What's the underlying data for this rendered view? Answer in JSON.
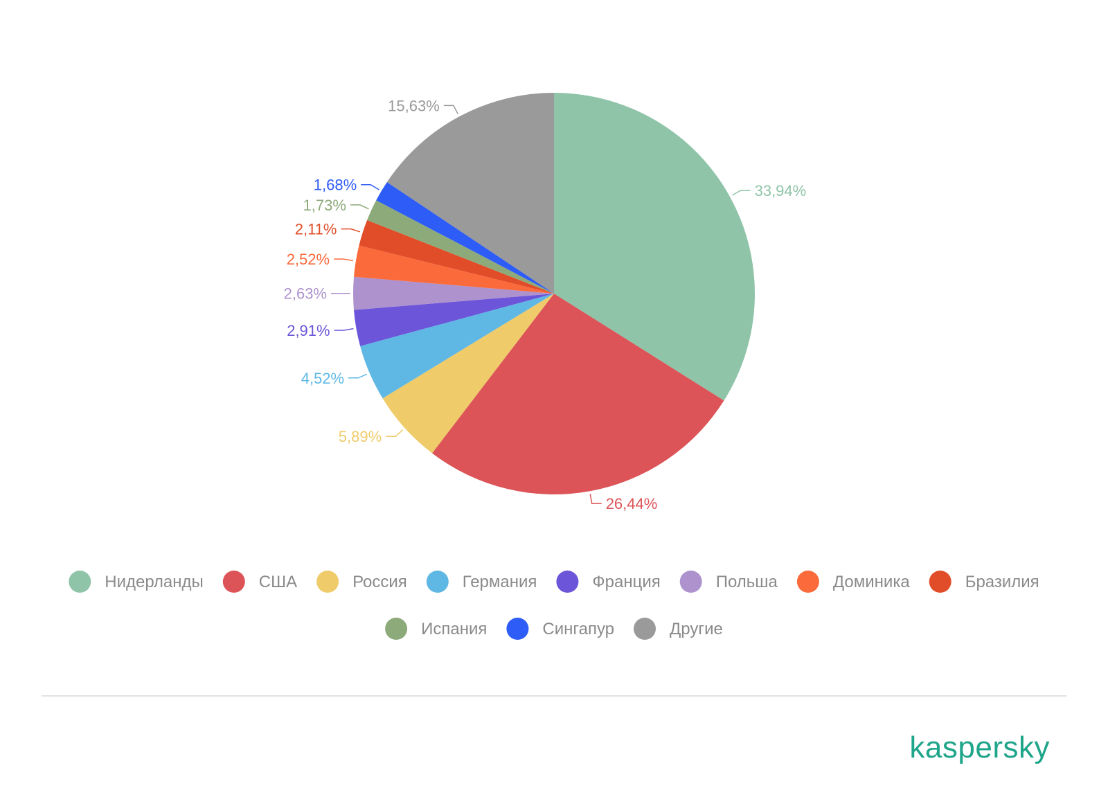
{
  "chart_data": {
    "type": "pie",
    "start_angle_deg": 0,
    "direction": "clockwise",
    "slices": [
      {
        "name": "Нидерланды",
        "value": 33.94,
        "label": "33,94%",
        "color": "#8fc4a8"
      },
      {
        "name": "США",
        "value": 26.44,
        "label": "26,44%",
        "color": "#dc5458"
      },
      {
        "name": "Россия",
        "value": 5.89,
        "label": "5,89%",
        "color": "#efcb6a"
      },
      {
        "name": "Германия",
        "value": 4.52,
        "label": "4,52%",
        "color": "#5fb8e4"
      },
      {
        "name": "Франция",
        "value": 2.91,
        "label": "2,91%",
        "color": "#6c55d9"
      },
      {
        "name": "Польша",
        "value": 2.63,
        "label": "2,63%",
        "color": "#ad92ce"
      },
      {
        "name": "Доминика",
        "value": 2.52,
        "label": "2,52%",
        "color": "#fa6a3b"
      },
      {
        "name": "Бразилия",
        "value": 2.11,
        "label": "2,11%",
        "color": "#e14d28"
      },
      {
        "name": "Испания",
        "value": 1.73,
        "label": "1,73%",
        "color": "#8daa7a"
      },
      {
        "name": "Сингапур",
        "value": 1.68,
        "label": "1,68%",
        "color": "#2e5cf6"
      },
      {
        "name": "Другие",
        "value": 15.63,
        "label": "15,63%",
        "color": "#9a9a9a"
      }
    ],
    "legend": {
      "position": "bottom",
      "rows": [
        8,
        3
      ]
    }
  },
  "brand": {
    "logo_text": "kaspersky",
    "color": "#1fa58a"
  }
}
